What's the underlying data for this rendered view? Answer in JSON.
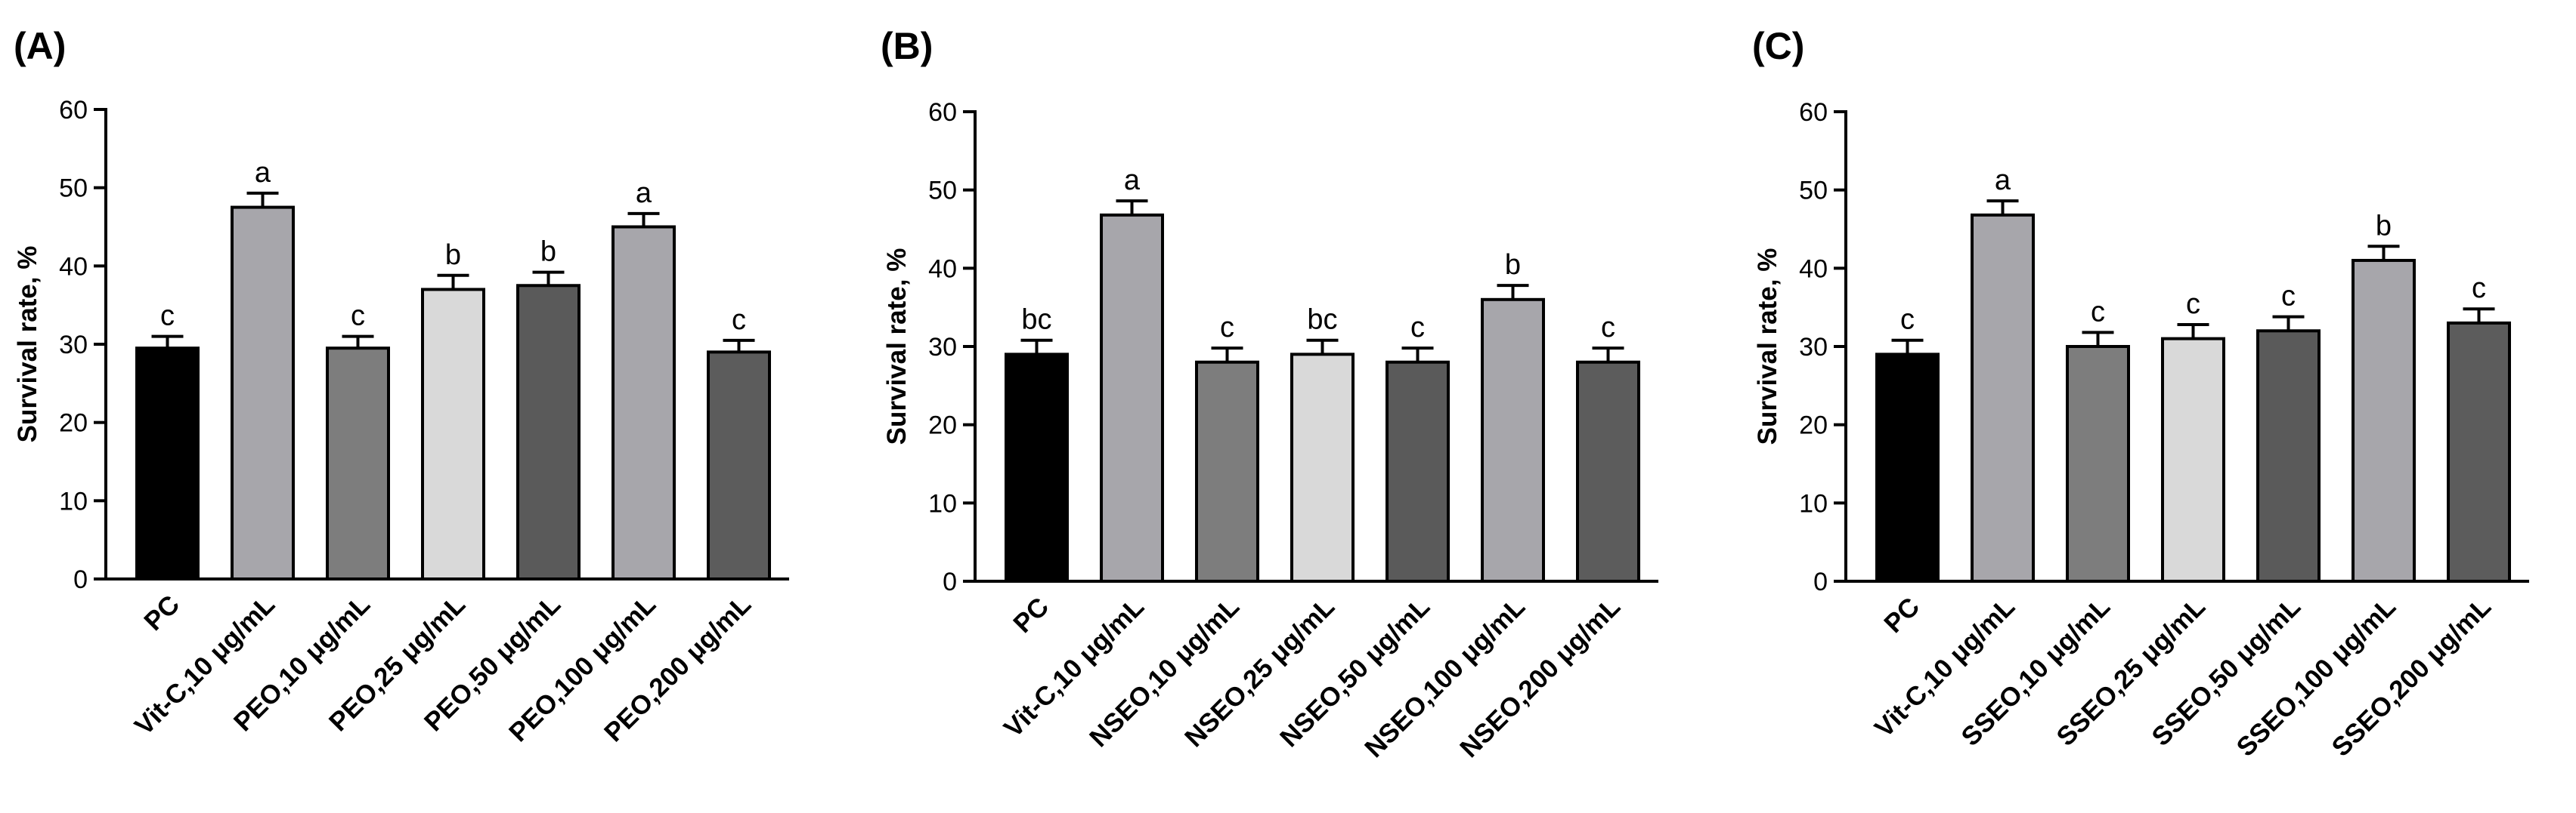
{
  "chart_data": [
    {
      "type": "bar",
      "panel_label": "(A)",
      "ylabel": "Survival rate, %",
      "ylim": [
        0,
        60
      ],
      "yticks": [
        0,
        10,
        20,
        30,
        40,
        50,
        60
      ],
      "categories": [
        "PC",
        "Vit-C,10 μg/mL",
        "PEO,10 μg/mL",
        "PEO,25 μg/mL",
        "PEO,50 μg/mL",
        "PEO,100 μg/mL",
        "PEO,200 μg/mL"
      ],
      "values": [
        29.5,
        47.5,
        29.5,
        37,
        37.5,
        45,
        29
      ],
      "errors": [
        1.5,
        1.8,
        1.5,
        1.8,
        1.7,
        1.7,
        1.5
      ],
      "significance": [
        "c",
        "a",
        "c",
        "b",
        "b",
        "a",
        "c"
      ],
      "colors": [
        "#000000",
        "#a7a6ab",
        "#7d7d7d",
        "#d9d9d9",
        "#5a5a5a",
        "#a7a6ab",
        "#5c5c5c"
      ]
    },
    {
      "type": "bar",
      "panel_label": "(B)",
      "ylabel": "Survival rate, %",
      "ylim": [
        0,
        60
      ],
      "yticks": [
        0,
        10,
        20,
        30,
        40,
        50,
        60
      ],
      "categories": [
        "PC",
        "Vit-C,10 μg/mL",
        "NSEO,10 μg/mL",
        "NSEO,25 μg/mL",
        "NSEO,50 μg/mL",
        "NSEO,100 μg/mL",
        "NSEO,200 μg/mL"
      ],
      "values": [
        29,
        46.8,
        28,
        29,
        28,
        36,
        28
      ],
      "errors": [
        1.8,
        1.8,
        1.8,
        1.8,
        1.8,
        1.8,
        1.8
      ],
      "significance": [
        "bc",
        "a",
        "c",
        "bc",
        "c",
        "b",
        "c"
      ],
      "colors": [
        "#000000",
        "#a7a6ab",
        "#7d7d7d",
        "#d9d9d9",
        "#5a5a5a",
        "#a7a6ab",
        "#5c5c5c"
      ]
    },
    {
      "type": "bar",
      "panel_label": "(C)",
      "ylabel": "Survival rate, %",
      "ylim": [
        0,
        60
      ],
      "yticks": [
        0,
        10,
        20,
        30,
        40,
        50,
        60
      ],
      "categories": [
        "PC",
        "Vit-C,10 μg/mL",
        "SSEO,10 μg/mL",
        "SSEO,25 μg/mL",
        "SSEO,50 μg/mL",
        "SSEO,100 μg/mL",
        "SSEO,200 μg/mL"
      ],
      "values": [
        29,
        46.8,
        30,
        31,
        32,
        41,
        33
      ],
      "errors": [
        1.8,
        1.8,
        1.8,
        1.8,
        1.8,
        1.8,
        1.8
      ],
      "significance": [
        "c",
        "a",
        "c",
        "c",
        "c",
        "b",
        "c"
      ],
      "colors": [
        "#000000",
        "#a7a6ab",
        "#7d7d7d",
        "#d9d9d9",
        "#5a5a5a",
        "#a7a6ab",
        "#5c5c5c"
      ]
    }
  ]
}
